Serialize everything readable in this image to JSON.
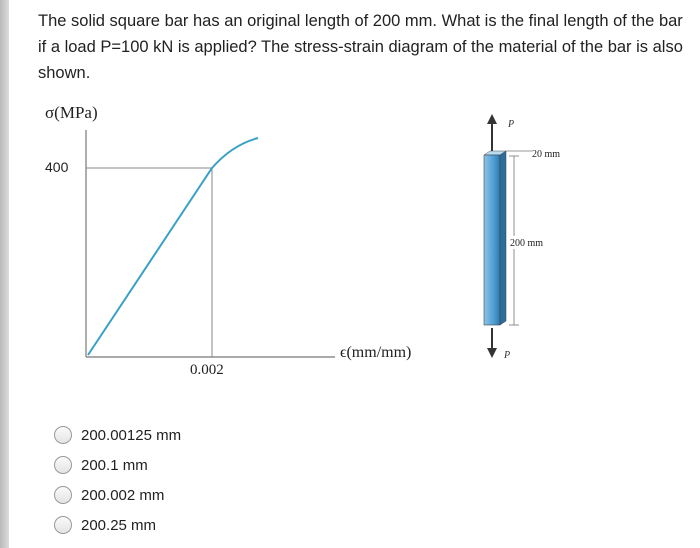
{
  "question": "The solid square bar has an original length of 200 mm. What is the final length of the bar if a load P=100 kN is applied? The stress-strain diagram of the material of the bar is also shown.",
  "stress_strain_figure": {
    "y_axis_label": "σ(MPa)",
    "y_tick": "400",
    "x_tick": "0.002",
    "x_axis_label": "ϵ(mm/mm)"
  },
  "bar_figure": {
    "load_top": "P",
    "width": "20 mm",
    "length": "200 mm",
    "load_bottom": "P"
  },
  "options": [
    "200.00125 mm",
    "200.1 mm",
    "200.002 mm",
    "200.25 mm"
  ]
}
